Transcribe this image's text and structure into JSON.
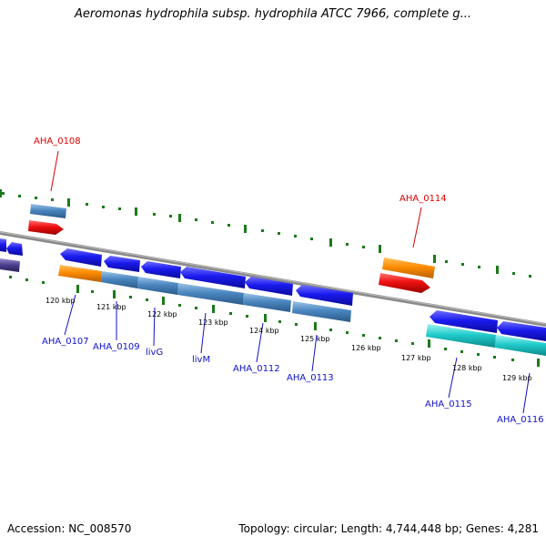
{
  "title": "Aeromonas hydrophila subsp. hydrophila ATCC 7966, complete g...",
  "footer": {
    "accession": "Accession: NC_008570",
    "summary": "Topology: circular; Length: 4,744,448 bp; Genes: 4,281"
  },
  "colors": {
    "forward_gene": "#1a1aee",
    "reverse_orange": "#ff8c00",
    "reverse_red": "#ee1111",
    "steel": "#4a86c0",
    "cyan": "#22cccc",
    "backbone": "#8a8a8a",
    "tick_green": "#1a7a1a",
    "label_red": "#dd0000",
    "label_blue": "#1010cc"
  },
  "kbp_ticks": [
    "120 kbp",
    "121 kbp",
    "122 kbp",
    "123 kbp",
    "124 kbp",
    "125 kbp",
    "126 kbp",
    "127 kbp",
    "128 kbp",
    "129 kbp"
  ],
  "labels_top": [
    "AHA_0108",
    "AHA_0114"
  ],
  "labels_bottom": [
    "AHA_0107",
    "AHA_0109",
    "livG",
    "livM",
    "AHA_0112",
    "AHA_0113",
    "AHA_0115",
    "AHA_0116"
  ]
}
